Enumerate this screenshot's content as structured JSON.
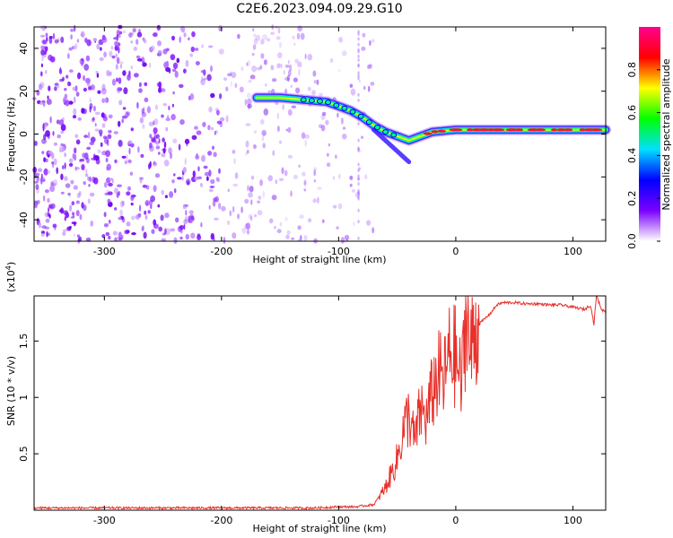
{
  "title": "C2E6.2023.094.09.29.G10",
  "chart_data": [
    {
      "type": "heatmap",
      "name": "spectrogram",
      "xlabel": "Height of straight line (km)",
      "ylabel": "Frequency (Hz)",
      "xlim": [
        -360,
        128
      ],
      "ylim": [
        -50,
        50
      ],
      "xticks": [
        -300,
        -200,
        -100,
        0,
        100
      ],
      "yticks": [
        -40,
        -20,
        0,
        20,
        40
      ],
      "colorbar": {
        "label": "Normalized spectral amplitude",
        "range": [
          0,
          1
        ],
        "ticks": [
          0.0,
          0.2,
          0.4,
          0.6,
          0.8
        ],
        "colormap": [
          "#ffffff",
          "#7a00ff",
          "#0000ff",
          "#00e0ff",
          "#00ff00",
          "#ffff00",
          "#ff0000",
          "#ff0090"
        ]
      },
      "ridge": {
        "x": [
          -170,
          -150,
          -130,
          -110,
          -100,
          -90,
          -80,
          -70,
          -60,
          -50,
          -40,
          -30,
          -20,
          0,
          20,
          40,
          60,
          80,
          100,
          128
        ],
        "y": [
          17,
          17,
          16,
          15,
          13,
          11,
          8,
          4,
          1,
          -1,
          -3,
          -1,
          1,
          2,
          2,
          2,
          2,
          2,
          2,
          2
        ]
      }
    },
    {
      "type": "line",
      "name": "snr",
      "xlabel": "Height of straight line (km)",
      "ylabel": "SNR (10 * v/v)",
      "ylabel_scale": "(x10",
      "ylabel_exp": "4",
      "ylabel_close": ")",
      "xlim": [
        -360,
        128
      ],
      "ylim": [
        0,
        1.9
      ],
      "xticks": [
        -300,
        -200,
        -100,
        0,
        100
      ],
      "yticks": [
        0.5,
        1.0,
        1.5
      ],
      "series": [
        {
          "color": "#e8302a",
          "x": [
            -360,
            -300,
            -200,
            -120,
            -100,
            -85,
            -70,
            -60,
            -50,
            -45,
            -40,
            -35,
            -30,
            -25,
            -20,
            -15,
            -10,
            -5,
            0,
            5,
            10,
            12,
            15,
            20,
            25,
            30,
            35,
            40,
            50,
            60,
            70,
            80,
            90,
            100,
            110,
            115,
            118,
            120,
            125,
            128
          ],
          "y": [
            0.02,
            0.02,
            0.02,
            0.02,
            0.03,
            0.03,
            0.05,
            0.2,
            0.45,
            0.7,
            0.85,
            0.6,
            0.9,
            0.8,
            1.05,
            1.2,
            1.15,
            1.4,
            1.35,
            1.1,
            1.95,
            1.3,
            1.55,
            1.65,
            1.7,
            1.75,
            1.82,
            1.84,
            1.84,
            1.83,
            1.83,
            1.82,
            1.82,
            1.8,
            1.78,
            1.82,
            1.65,
            1.9,
            1.77,
            1.77
          ]
        }
      ]
    }
  ]
}
